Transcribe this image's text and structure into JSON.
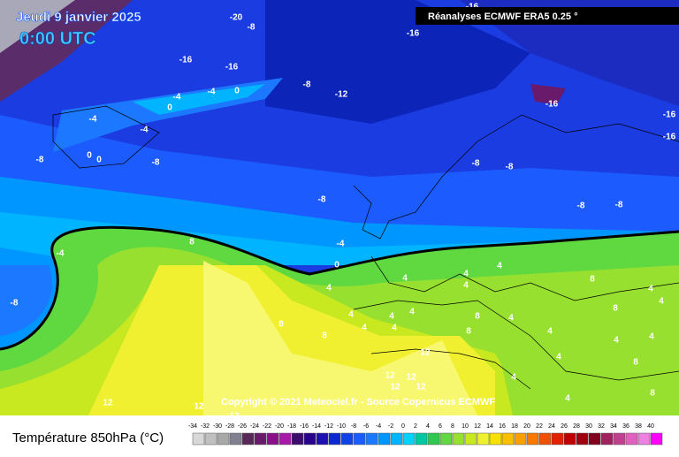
{
  "header": {
    "date": "Jeudi 9 janvier 2025",
    "time": "0:00 UTC",
    "source": "Réanalyses ECMWF ERA5 0.25 °"
  },
  "copyright": "Copyright © 2021 Meteociel.fr - Source Copernicus ECMWF",
  "legend": {
    "title": "Température 850hPa (°C)",
    "ticks": [
      -34,
      -32,
      -30,
      -28,
      -26,
      -24,
      -22,
      -20,
      -18,
      -16,
      -14,
      -12,
      -10,
      -8,
      -6,
      -4,
      -2,
      0,
      2,
      4,
      6,
      8,
      10,
      12,
      14,
      16,
      18,
      20,
      22,
      24,
      26,
      28,
      30,
      32,
      34,
      36,
      38,
      40
    ],
    "colors": [
      "#d8d8d8",
      "#c0c0c0",
      "#a8a8a8",
      "#808090",
      "#582858",
      "#6a1a6a",
      "#8a108a",
      "#a818a8",
      "#3c0c6c",
      "#28008c",
      "#1c10b0",
      "#0c28d0",
      "#1040e8",
      "#1c5cff",
      "#1c78ff",
      "#0096ff",
      "#00b4ff",
      "#00d2ff",
      "#00c8a0",
      "#30c850",
      "#60d840",
      "#98e030",
      "#c8e820",
      "#f0f030",
      "#f8e000",
      "#f8c000",
      "#f8a000",
      "#f87800",
      "#f05000",
      "#e02000",
      "#c00000",
      "#a00010",
      "#800020",
      "#a02060",
      "#c04090",
      "#e060c0",
      "#f080e0",
      "#ff00ff"
    ]
  },
  "isotherm_labels": [
    -16,
    -20,
    -8,
    -16,
    -16,
    -16,
    -8,
    -12,
    -4,
    -4,
    0,
    0,
    -4,
    -4,
    -16,
    -16,
    -16,
    0,
    0,
    -8,
    -8,
    -8,
    -8,
    -8,
    -8,
    -8,
    -4,
    -4,
    8,
    0,
    4,
    -8,
    4,
    4,
    4,
    4,
    8,
    4,
    4,
    8,
    4,
    4,
    4,
    4,
    8,
    8,
    4,
    4,
    8,
    4,
    4,
    4,
    8,
    12,
    8,
    4,
    12,
    12,
    12,
    12,
    4,
    4,
    8,
    12,
    12,
    12
  ]
}
